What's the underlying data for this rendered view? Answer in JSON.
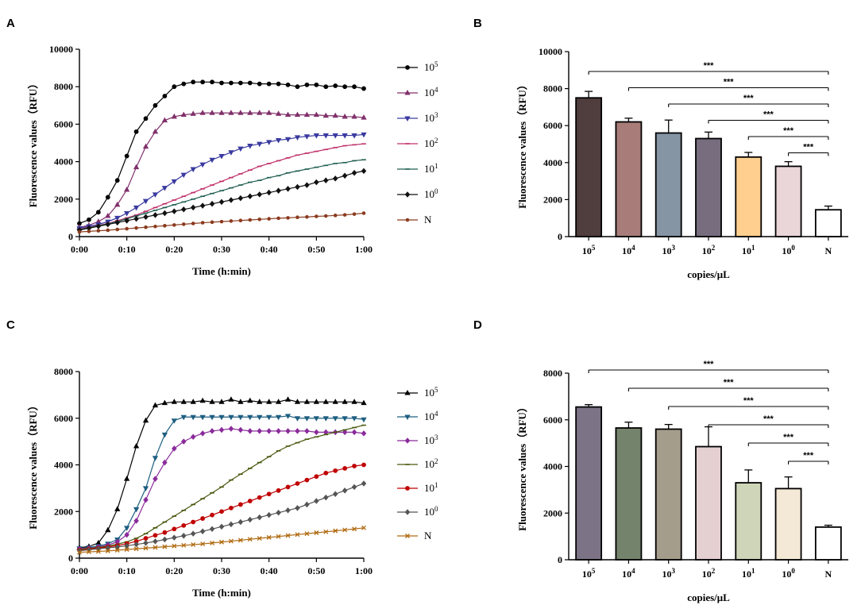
{
  "panels": {
    "A": "A",
    "B": "B",
    "C": "C",
    "D": "D"
  },
  "chart_data": [
    {
      "id": "A",
      "type": "line",
      "xlabel": "Time (h:min)",
      "ylabel": "Fluorescence values（RFU）",
      "x": [
        0,
        2,
        4,
        6,
        8,
        10,
        12,
        14,
        16,
        18,
        20,
        22,
        24,
        26,
        28,
        30,
        32,
        34,
        36,
        38,
        40,
        42,
        44,
        46,
        48,
        50,
        52,
        54,
        56,
        58,
        60
      ],
      "xticks": [
        "0:00",
        "0:10",
        "0:20",
        "0:30",
        "0:40",
        "0:50",
        "1:00"
      ],
      "ylim": [
        0,
        10000
      ],
      "yticks": [
        0,
        2000,
        4000,
        6000,
        8000,
        10000
      ],
      "series": [
        {
          "name": "10^5",
          "base": "10",
          "exp": "5",
          "color": "#000000",
          "marker": "circle",
          "values": [
            700,
            900,
            1300,
            2100,
            3000,
            4300,
            5600,
            6300,
            7000,
            7500,
            8000,
            8150,
            8250,
            8250,
            8250,
            8200,
            8200,
            8200,
            8200,
            8150,
            8150,
            8150,
            8100,
            8000,
            8100,
            8100,
            8000,
            8050,
            8000,
            8000,
            7900
          ]
        },
        {
          "name": "10^4",
          "base": "10",
          "exp": "4",
          "color": "#80306b",
          "marker": "triangle",
          "values": [
            500,
            600,
            800,
            1100,
            1700,
            2500,
            3700,
            4800,
            5600,
            6200,
            6400,
            6500,
            6550,
            6600,
            6600,
            6600,
            6600,
            6600,
            6600,
            6600,
            6600,
            6550,
            6500,
            6500,
            6500,
            6500,
            6450,
            6450,
            6400,
            6400,
            6350
          ]
        },
        {
          "name": "10^3",
          "base": "10",
          "exp": "3",
          "color": "#3a3aa0",
          "marker": "invtriangle",
          "values": [
            450,
            550,
            650,
            800,
            1000,
            1250,
            1550,
            1900,
            2250,
            2600,
            2950,
            3300,
            3600,
            3850,
            4100,
            4300,
            4500,
            4700,
            4850,
            4950,
            5050,
            5150,
            5200,
            5300,
            5350,
            5400,
            5400,
            5400,
            5400,
            5400,
            5450
          ]
        },
        {
          "name": "10^2",
          "base": "10",
          "exp": "2",
          "color": "#c0306a",
          "marker": "dash",
          "values": [
            400,
            500,
            600,
            700,
            850,
            1000,
            1150,
            1350,
            1550,
            1750,
            1950,
            2150,
            2350,
            2550,
            2750,
            2950,
            3150,
            3350,
            3550,
            3750,
            3900,
            4050,
            4200,
            4350,
            4450,
            4550,
            4650,
            4750,
            4850,
            4900,
            4950
          ]
        },
        {
          "name": "10^1",
          "base": "10",
          "exp": "1",
          "color": "#1e5e50",
          "marker": "dash",
          "values": [
            380,
            480,
            580,
            680,
            800,
            950,
            1100,
            1250,
            1400,
            1550,
            1700,
            1850,
            2000,
            2150,
            2300,
            2450,
            2600,
            2750,
            2900,
            3000,
            3150,
            3250,
            3400,
            3500,
            3600,
            3700,
            3800,
            3900,
            3950,
            4050,
            4100
          ]
        },
        {
          "name": "10^0",
          "base": "10",
          "exp": "0",
          "color": "#111111",
          "marker": "diamond",
          "values": [
            350,
            450,
            550,
            650,
            750,
            850,
            950,
            1050,
            1150,
            1250,
            1350,
            1450,
            1550,
            1650,
            1750,
            1850,
            1950,
            2050,
            2150,
            2250,
            2350,
            2450,
            2550,
            2650,
            2750,
            2900,
            3000,
            3100,
            3250,
            3400,
            3500
          ]
        },
        {
          "name": "N",
          "base": "N",
          "exp": "",
          "color": "#8b3a1e",
          "marker": "dot",
          "values": [
            250,
            280,
            310,
            340,
            380,
            420,
            460,
            500,
            540,
            580,
            620,
            660,
            700,
            740,
            770,
            800,
            830,
            860,
            890,
            920,
            950,
            980,
            1000,
            1030,
            1050,
            1080,
            1100,
            1130,
            1160,
            1200,
            1250
          ]
        }
      ]
    },
    {
      "id": "B",
      "type": "bar",
      "xlabel": "copies/μL",
      "ylabel": "Fluorescence values（RFU）",
      "ylim": [
        0,
        10000
      ],
      "yticks": [
        0,
        2000,
        4000,
        6000,
        8000,
        10000
      ],
      "categories": [
        {
          "base": "10",
          "exp": "5"
        },
        {
          "base": "10",
          "exp": "4"
        },
        {
          "base": "10",
          "exp": "3"
        },
        {
          "base": "10",
          "exp": "2"
        },
        {
          "base": "10",
          "exp": "1"
        },
        {
          "base": "10",
          "exp": "0"
        },
        {
          "base": "N",
          "exp": ""
        }
      ],
      "values": [
        7500,
        6200,
        5600,
        5300,
        4300,
        3800,
        1450
      ],
      "errors": [
        350,
        200,
        700,
        350,
        250,
        250,
        200
      ],
      "colors": [
        "#503d3d",
        "#a77c79",
        "#8595a4",
        "#776d7e",
        "#ffcf8f",
        "#ead6d9",
        "#ffffff"
      ],
      "significance": [
        {
          "from": 0,
          "to": 6,
          "label": "***"
        },
        {
          "from": 1,
          "to": 6,
          "label": "***"
        },
        {
          "from": 2,
          "to": 6,
          "label": "***"
        },
        {
          "from": 3,
          "to": 6,
          "label": "***"
        },
        {
          "from": 4,
          "to": 6,
          "label": "***"
        },
        {
          "from": 5,
          "to": 6,
          "label": "***"
        }
      ]
    },
    {
      "id": "C",
      "type": "line",
      "xlabel": "Time (h:min)",
      "ylabel": "Fluorescence values（RFU）",
      "x": [
        0,
        2,
        4,
        6,
        8,
        10,
        12,
        14,
        16,
        18,
        20,
        22,
        24,
        26,
        28,
        30,
        32,
        34,
        36,
        38,
        40,
        42,
        44,
        46,
        48,
        50,
        52,
        54,
        56,
        58,
        60
      ],
      "xticks": [
        "0:00",
        "0:10",
        "0:20",
        "0:30",
        "0:40",
        "0:50",
        "1:00"
      ],
      "ylim": [
        0,
        8000
      ],
      "yticks": [
        0,
        2000,
        4000,
        6000,
        8000
      ],
      "series": [
        {
          "name": "10^5",
          "base": "10",
          "exp": "5",
          "color": "#000000",
          "marker": "triangle",
          "values": [
            450,
            500,
            650,
            1200,
            2100,
            3400,
            4800,
            5900,
            6550,
            6650,
            6700,
            6700,
            6700,
            6750,
            6700,
            6700,
            6800,
            6700,
            6750,
            6700,
            6700,
            6700,
            6800,
            6700,
            6700,
            6700,
            6700,
            6700,
            6700,
            6700,
            6650
          ]
        },
        {
          "name": "10^4",
          "base": "10",
          "exp": "4",
          "color": "#1e5f80",
          "marker": "invtriangle",
          "values": [
            420,
            460,
            520,
            620,
            800,
            1300,
            2100,
            3000,
            4300,
            5300,
            5900,
            6050,
            6050,
            6050,
            6050,
            6050,
            6050,
            6050,
            6050,
            6050,
            6050,
            6050,
            6100,
            6000,
            6000,
            6000,
            6000,
            6000,
            6000,
            6000,
            5950
          ]
        },
        {
          "name": "10^3",
          "base": "10",
          "exp": "3",
          "color": "#8a2b9b",
          "marker": "diamond",
          "values": [
            400,
            430,
            480,
            560,
            700,
            1000,
            1600,
            2500,
            3400,
            4100,
            4700,
            5000,
            5200,
            5350,
            5450,
            5500,
            5550,
            5500,
            5450,
            5450,
            5450,
            5450,
            5450,
            5450,
            5450,
            5400,
            5400,
            5400,
            5400,
            5400,
            5350
          ]
        },
        {
          "name": "10^2",
          "base": "10",
          "exp": "2",
          "color": "#4a5a10",
          "marker": "dash",
          "values": [
            380,
            420,
            460,
            520,
            600,
            700,
            850,
            1050,
            1300,
            1550,
            1800,
            2050,
            2300,
            2550,
            2800,
            3050,
            3350,
            3600,
            3850,
            4100,
            4350,
            4600,
            4800,
            4950,
            5100,
            5200,
            5300,
            5400,
            5500,
            5600,
            5700
          ]
        },
        {
          "name": "10^1",
          "base": "10",
          "exp": "1",
          "color": "#c00000",
          "marker": "circle",
          "values": [
            350,
            390,
            430,
            480,
            540,
            620,
            720,
            850,
            980,
            1100,
            1250,
            1400,
            1550,
            1700,
            1850,
            2000,
            2150,
            2300,
            2450,
            2600,
            2750,
            2900,
            3050,
            3200,
            3350,
            3500,
            3650,
            3750,
            3850,
            3950,
            4000
          ]
        },
        {
          "name": "10^0",
          "base": "10",
          "exp": "0",
          "color": "#555555",
          "marker": "diamond",
          "values": [
            320,
            360,
            400,
            440,
            480,
            530,
            590,
            650,
            720,
            800,
            880,
            960,
            1050,
            1150,
            1250,
            1350,
            1450,
            1550,
            1650,
            1750,
            1850,
            1950,
            2050,
            2150,
            2300,
            2450,
            2600,
            2750,
            2900,
            3050,
            3200
          ]
        },
        {
          "name": "N",
          "base": "N",
          "exp": "",
          "color": "#b06a10",
          "marker": "cross",
          "values": [
            250,
            270,
            290,
            310,
            340,
            370,
            400,
            430,
            460,
            490,
            520,
            550,
            580,
            610,
            650,
            690,
            730,
            770,
            810,
            850,
            890,
            930,
            970,
            1010,
            1050,
            1090,
            1130,
            1170,
            1210,
            1250,
            1300
          ]
        }
      ]
    },
    {
      "id": "D",
      "type": "bar",
      "xlabel": "copies/μL",
      "ylabel": "Fluorescence values（RFU）",
      "ylim": [
        0,
        8000
      ],
      "yticks": [
        0,
        2000,
        4000,
        6000,
        8000
      ],
      "categories": [
        {
          "base": "10",
          "exp": "5"
        },
        {
          "base": "10",
          "exp": "4"
        },
        {
          "base": "10",
          "exp": "3"
        },
        {
          "base": "10",
          "exp": "2"
        },
        {
          "base": "10",
          "exp": "1"
        },
        {
          "base": "10",
          "exp": "0"
        },
        {
          "base": "N",
          "exp": ""
        }
      ],
      "values": [
        6550,
        5650,
        5600,
        4850,
        3300,
        3050,
        1400
      ],
      "errors": [
        100,
        250,
        200,
        850,
        550,
        500,
        80
      ],
      "colors": [
        "#7d7386",
        "#74846c",
        "#a59d8c",
        "#e4cfd1",
        "#cfd5b9",
        "#f4e9d6",
        "#ffffff"
      ],
      "significance": [
        {
          "from": 0,
          "to": 6,
          "label": "***"
        },
        {
          "from": 1,
          "to": 6,
          "label": "***"
        },
        {
          "from": 2,
          "to": 6,
          "label": "***"
        },
        {
          "from": 3,
          "to": 6,
          "label": "***"
        },
        {
          "from": 4,
          "to": 6,
          "label": "***"
        },
        {
          "from": 5,
          "to": 6,
          "label": "***"
        }
      ]
    }
  ]
}
